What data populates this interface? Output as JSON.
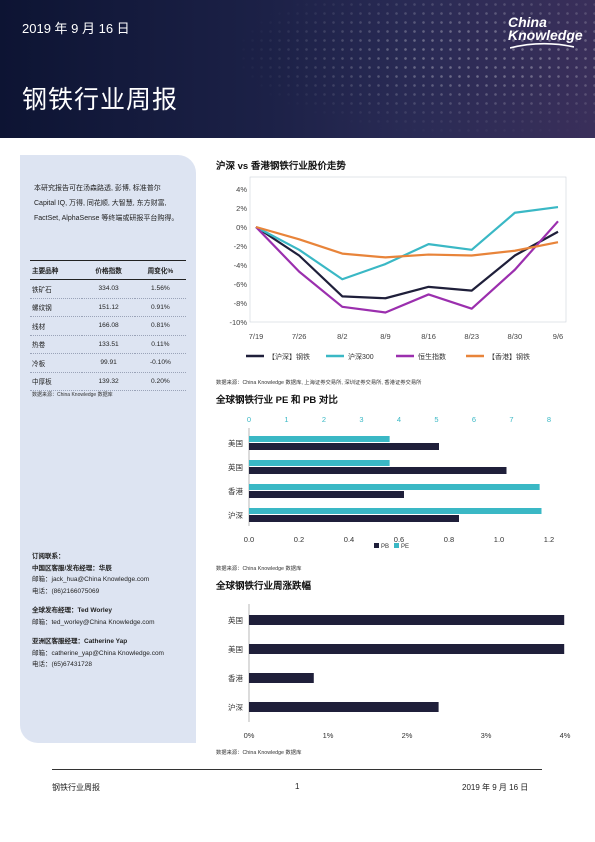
{
  "header": {
    "date": "2019 年 9 月 16 日",
    "title": "钢铁行业周报",
    "logo_line1": "China",
    "logo_line2": "Knowledge"
  },
  "sidebar": {
    "intro": "本研究报告可在汤森路透, 彭博, 标准普尔 Capital IQ, 万得, 同花顺, 大智慧, 东方财富, FactSet, AlphaSense 等终端或研报平台购得。",
    "table_headers": [
      "主要品种",
      "价格指数",
      "周变化%"
    ],
    "rows": [
      {
        "name": "铁矿石",
        "price": "334.03",
        "chg": "1.56%"
      },
      {
        "name": "螺纹钢",
        "price": "151.12",
        "chg": "0.91%"
      },
      {
        "name": "线材",
        "price": "166.08",
        "chg": "0.81%"
      },
      {
        "name": "热卷",
        "price": "133.51",
        "chg": "0.11%"
      },
      {
        "name": "冷板",
        "price": "99.91",
        "chg": "-0.10%"
      },
      {
        "name": "中厚板",
        "price": "139.32",
        "chg": "0.20%"
      }
    ],
    "table_source": "数据来源：China Knowledge 数据库",
    "contacts": {
      "heading": "订阅联系：",
      "cn_title": "中国区客服/发布经理：华辰",
      "cn_email": "邮箱：jack_hua@China Knowledge.com",
      "cn_phone": "电话：(86)2166075069",
      "global_title": "全球发布经理：Ted Worley",
      "global_email": "邮箱：ted_worley@China Knowledge.com",
      "asia_title": "亚洲区客服经理：Catherine Yap",
      "asia_email": "邮箱：catherine_yap@China Knowledge.com",
      "asia_phone": "电话：(65)67431728"
    }
  },
  "charts": {
    "line_title": "沪深 vs 香港钢铁行业股价走势",
    "line_source": "数据来源：China Knowledge 数据库, 上海证券交易所, 深圳证券交易所, 香港证券交易所",
    "bar_title": "全球钢铁行业 PE 和 PB 对比",
    "bar_source": "数据来源：China Knowledge 数据库",
    "growth_title": "全球钢铁行业周涨跌幅",
    "growth_source": "数据来源：China Knowledge 数据库"
  },
  "chart_data": [
    {
      "type": "line",
      "x": [
        "7/19",
        "7/26",
        "8/2",
        "8/9",
        "8/16",
        "8/23",
        "8/30",
        "9/6"
      ],
      "ylim": [
        -10,
        4
      ],
      "yticks": [
        "4%",
        "2%",
        "0%",
        "-2%",
        "-4%",
        "-6%",
        "-8%",
        "-10%"
      ],
      "series": [
        {
          "name": "【沪深】钢铁",
          "color": "#1f1f3a",
          "values": [
            0,
            -3.0,
            -7.3,
            -7.5,
            -6.3,
            -6.7,
            -3.0,
            -0.5
          ]
        },
        {
          "name": "沪深300",
          "color": "#3ab8c5",
          "values": [
            0,
            -2.4,
            -5.5,
            -3.9,
            -1.8,
            -2.4,
            1.5,
            2.1
          ]
        },
        {
          "name": "恒生指数",
          "color": "#9b2fae",
          "values": [
            0,
            -4.7,
            -8.4,
            -9.0,
            -7.1,
            -8.6,
            -4.5,
            0.6
          ]
        },
        {
          "name": "【香港】钢铁",
          "color": "#e8843a",
          "values": [
            0,
            -1.3,
            -2.8,
            -3.2,
            -2.9,
            -3.0,
            -2.5,
            -1.6
          ]
        }
      ]
    },
    {
      "type": "bar",
      "orientation": "horizontal",
      "categories": [
        "美国",
        "英国",
        "香港",
        "沪深"
      ],
      "top_axis_ticks": [
        "0",
        "1",
        "2",
        "3",
        "4",
        "5",
        "6",
        "7",
        "8"
      ],
      "bottom_axis_ticks": [
        "0.0",
        "0.2",
        "0.4",
        "0.6",
        "0.8",
        "1.0",
        "1.2"
      ],
      "pe_lim": [
        0,
        8
      ],
      "pb_lim": [
        0,
        1.2
      ],
      "series": [
        {
          "name": "PB",
          "color": "#1f1f3a",
          "values": [
            0.76,
            1.03,
            0.62,
            0.84
          ]
        },
        {
          "name": "PE",
          "color": "#3ab8c5",
          "values": [
            3.75,
            3.75,
            7.75,
            7.8
          ]
        }
      ]
    },
    {
      "type": "bar",
      "orientation": "horizontal",
      "categories": [
        "英国",
        "美国",
        "香港",
        "沪深"
      ],
      "xticks": [
        "0%",
        "1%",
        "2%",
        "3%",
        "4%"
      ],
      "xlim": [
        0,
        4
      ],
      "series": [
        {
          "name": "",
          "color": "#1f1f3a",
          "values": [
            3.99,
            3.99,
            0.82,
            2.4
          ]
        }
      ]
    }
  ],
  "footer": {
    "left": "钢铁行业周报",
    "page": "1",
    "right": "2019 年 9 月 16 日"
  }
}
